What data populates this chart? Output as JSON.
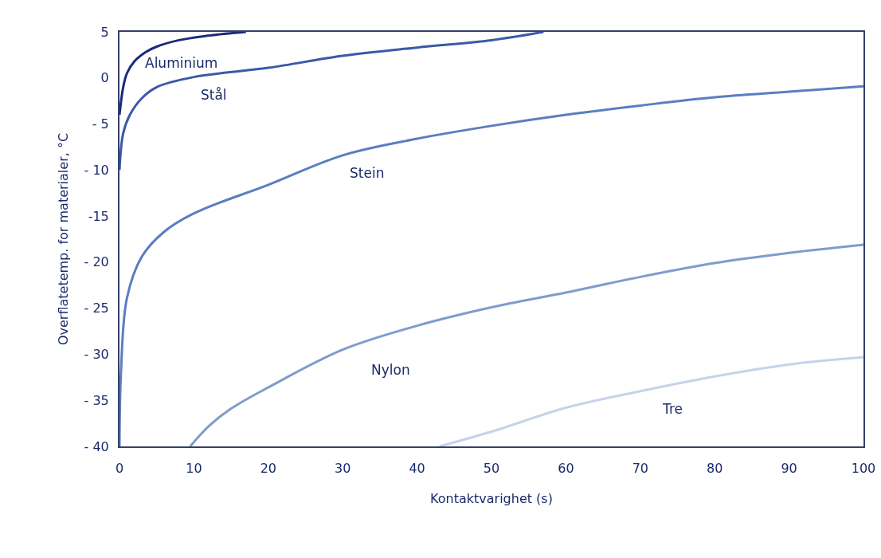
{
  "chart_data": {
    "type": "line",
    "xlabel": "Kontaktvarighet (s)",
    "ylabel": "Overflatetemp. for materialer, °C",
    "xlim": [
      0,
      100
    ],
    "xticks": [
      0,
      10,
      20,
      30,
      40,
      50,
      60,
      70,
      80,
      90,
      100
    ],
    "ylim": [
      -40,
      5
    ],
    "yticks": [
      5,
      0,
      {
        "value": -5,
        "label": "- 5"
      },
      {
        "value": -10,
        "label": "- 10"
      },
      {
        "value": -15,
        "label": "-15"
      },
      {
        "value": -20,
        "label": "- 20"
      },
      {
        "value": -25,
        "label": "- 25"
      },
      {
        "value": -30,
        "label": "- 30"
      },
      {
        "value": -35,
        "label": "- 35"
      },
      {
        "value": -40,
        "label": "- 40"
      }
    ],
    "grid": false,
    "legend": false,
    "marker": "none",
    "line_style": "solid",
    "series": [
      {
        "name": "Aluminium",
        "color": "#1a2a7a",
        "x": [
          0,
          0.5,
          1,
          2,
          3.5,
          5,
          8,
          12,
          17
        ],
        "values": [
          -4,
          -1,
          0.5,
          1.8,
          2.8,
          3.4,
          4.1,
          4.6,
          5
        ]
      },
      {
        "name": "Stål",
        "color": "#3a5aa8",
        "x": [
          0,
          0.5,
          1.4,
          3,
          5,
          10,
          20,
          30,
          40,
          50,
          57
        ],
        "values": [
          -10,
          -6,
          -4,
          -2.2,
          -1,
          0.1,
          1.1,
          2.4,
          3.3,
          4.1,
          5
        ]
      },
      {
        "name": "Stein",
        "color": "#5a7ec0",
        "x": [
          0,
          0.2,
          1,
          3,
          6,
          10,
          20,
          30,
          40,
          50,
          60,
          70,
          80,
          90,
          100
        ],
        "values": [
          -40,
          -32,
          -23.9,
          -19.4,
          -16.7,
          -14.7,
          -11.6,
          -8.4,
          -6.6,
          -5.2,
          -4,
          -3,
          -2.1,
          -1.5,
          -0.9
        ]
      },
      {
        "name": "Nylon",
        "color": "#7f9ccc",
        "x": [
          9.5,
          12,
          15,
          20,
          30,
          40,
          50,
          60,
          70,
          80,
          90,
          100
        ],
        "values": [
          -40,
          -37.8,
          -35.9,
          -33.6,
          -29.5,
          -26.9,
          -24.9,
          -23.3,
          -21.6,
          -20.1,
          -19,
          -18.1
        ]
      },
      {
        "name": "Tre",
        "color": "#c5d3ea",
        "x": [
          43,
          50,
          60,
          70,
          80,
          90,
          100
        ],
        "values": [
          -40,
          -38.4,
          -35.8,
          -34,
          -32.4,
          -31.1,
          -30.3
        ]
      }
    ]
  }
}
